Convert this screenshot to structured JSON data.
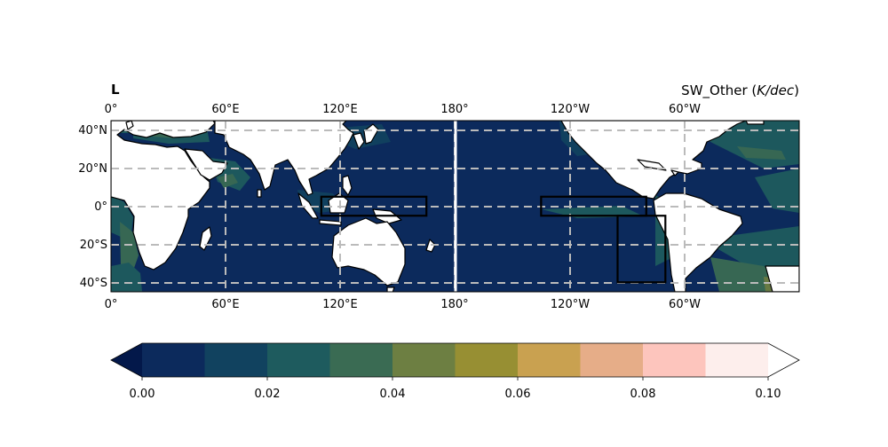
{
  "panel_label": "L",
  "title_main": "SW_Other (",
  "title_unit": "K/dec",
  "title_close": ")",
  "lon_ticks_top": [
    "0°",
    "60°E",
    "120°E",
    "180°",
    "120°W",
    "60°W"
  ],
  "lon_ticks_bottom": [
    "0°",
    "60°E",
    "120°E",
    "180°",
    "120°W",
    "60°W"
  ],
  "lat_ticks": [
    "40°N",
    "20°N",
    "0°",
    "20°S",
    "40°S"
  ],
  "colorbar": {
    "tick_labels": [
      "0.00",
      "0.02",
      "0.04",
      "0.06",
      "0.08",
      "0.10"
    ],
    "levels": [
      0.0,
      0.01,
      0.02,
      0.03,
      0.04,
      0.05,
      0.06,
      0.07,
      0.08,
      0.09,
      0.1
    ],
    "colors": [
      "#0c2a5c",
      "#11425f",
      "#1e5b5e",
      "#3a6b53",
      "#6d7f42",
      "#978f33",
      "#c9a150",
      "#e6ad88",
      "#fdc5bd",
      "#fdeeec"
    ],
    "under_color": "#03184a",
    "over_color": "#ffffff",
    "extend": "both"
  },
  "map": {
    "lon_range": [
      0,
      360
    ],
    "lat_range": [
      -45,
      45
    ],
    "ocean_color": "#0c2a5c",
    "land_color": "#ffffff",
    "gridline_color": "#bbbbbb",
    "regions": [
      {
        "name": "Maritime Continent box",
        "lon": [
          110,
          165
        ],
        "lat": [
          -5,
          5
        ]
      },
      {
        "name": "Equatorial East Pacific box",
        "lon": [
          225,
          280
        ],
        "lat": [
          -5,
          5
        ]
      },
      {
        "name": "Southeast Pacific box",
        "lon": [
          265,
          290
        ],
        "lat": [
          -40,
          -5
        ]
      }
    ]
  }
}
